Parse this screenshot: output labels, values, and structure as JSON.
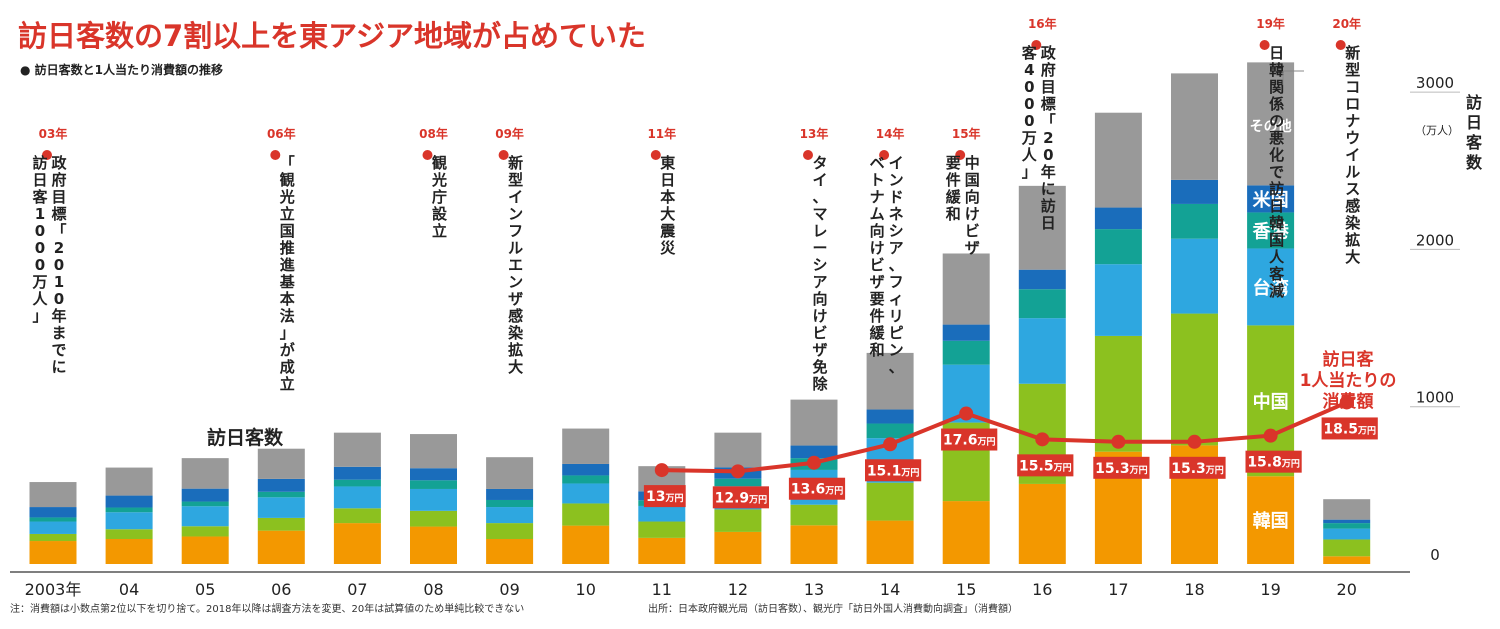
{
  "header": {
    "title": "訪日客数の7割以上を東アジア地域が占めていた",
    "subtitle": "● 訪日客数と1人当たり消費額の推移"
  },
  "chart_data": {
    "type": "bar",
    "categories": [
      "2003年",
      "04",
      "05",
      "06",
      "07",
      "08",
      "09",
      "10",
      "11",
      "12",
      "13",
      "14",
      "15",
      "16",
      "17",
      "18",
      "19",
      "20"
    ],
    "stack_order": [
      "韓国",
      "中国",
      "台湾",
      "香港",
      "米国",
      "その他"
    ],
    "series": [
      {
        "name": "韓国",
        "color": "#f39800",
        "values": [
          146,
          159,
          175,
          212,
          260,
          238,
          159,
          244,
          166,
          204,
          246,
          276,
          400,
          509,
          714,
          754,
          558,
          49
        ]
      },
      {
        "name": "中国",
        "color": "#8cc11f",
        "values": [
          45,
          62,
          65,
          81,
          94,
          100,
          101,
          141,
          104,
          143,
          131,
          241,
          499,
          637,
          736,
          838,
          959,
          107
        ]
      },
      {
        "name": "台湾",
        "color": "#2ea7e0",
        "values": [
          79,
          108,
          127,
          131,
          139,
          139,
          102,
          127,
          99,
          147,
          221,
          283,
          368,
          417,
          456,
          476,
          489,
          69
        ]
      },
      {
        "name": "香港",
        "color": "#13a295",
        "values": [
          26,
          30,
          30,
          35,
          43,
          55,
          45,
          51,
          36,
          48,
          75,
          93,
          152,
          184,
          223,
          221,
          229,
          35
        ]
      },
      {
        "name": "米国",
        "color": "#1a6dbb",
        "values": [
          66,
          76,
          82,
          82,
          82,
          77,
          70,
          73,
          57,
          72,
          80,
          89,
          103,
          124,
          137,
          153,
          172,
          22
        ]
      },
      {
        "name": "その他",
        "color": "#999999",
        "values": [
          159,
          178,
          194,
          192,
          217,
          217,
          202,
          225,
          160,
          221,
          292,
          360,
          452,
          533,
          603,
          677,
          782,
          130
        ]
      }
    ],
    "line": {
      "name": "訪日客1人当たりの消費額",
      "categories": [
        "11",
        "12",
        "13",
        "14",
        "15",
        "16",
        "17",
        "18",
        "19",
        "20"
      ],
      "values": [
        13.0,
        12.9,
        13.6,
        15.1,
        17.6,
        15.5,
        15.3,
        15.3,
        15.8,
        18.5
      ],
      "labels": [
        "13万円",
        "12.9万円",
        "13.6万円",
        "15.1万円",
        "17.6万円",
        "15.5万円",
        "15.3万円",
        "15.3万円",
        "15.8万円",
        "18.5万円"
      ],
      "color": "#d9352a"
    },
    "ylabel": "訪日客数",
    "yunit": "（万人）",
    "ylim": [
      0,
      3000
    ],
    "yticks": [
      "0",
      "1000",
      "2000",
      "3000"
    ],
    "bar_series_label": "訪日客数",
    "line_label_lines": [
      "訪日客",
      "1人当たりの",
      "消費額"
    ],
    "events": [
      {
        "year": "03年",
        "lines": [
          "政府目標「2010年までに",
          "訪日客1000万人」"
        ]
      },
      {
        "year": "06年",
        "lines": [
          "「観光立国推進基本法」が成立"
        ]
      },
      {
        "year": "08年",
        "lines": [
          "観光庁設立"
        ]
      },
      {
        "year": "09年",
        "lines": [
          "新型インフルエンザ感染拡大"
        ]
      },
      {
        "year": "11年",
        "lines": [
          "東日本大震災"
        ]
      },
      {
        "year": "13年",
        "lines": [
          "タイ、マレーシア向けビザ免除"
        ]
      },
      {
        "year": "14年",
        "lines": [
          "インドネシア、フィリピン、",
          "ベトナム向けビザ要件緩和"
        ]
      },
      {
        "year": "15年",
        "lines": [
          "中国向けビザ",
          "要件緩和"
        ]
      },
      {
        "year": "16年",
        "lines": [
          "政府目標「20年に訪日",
          "客4000万人」"
        ]
      },
      {
        "year": "19年",
        "lines": [
          "日韓関係の悪化で訪日韓国人客減"
        ]
      },
      {
        "year": "20年",
        "lines": [
          "新型コロナウイルス感染拡大"
        ]
      }
    ]
  },
  "footer": {
    "note": "注：消費額は小数点第2位以下を切り捨て。2018年以降は調査方法を変更、20年は試算値のため単純比較できない",
    "source": "出所：日本政府観光局（訪日客数）、観光庁「訪日外国人消費動向調査」（消費額）"
  }
}
